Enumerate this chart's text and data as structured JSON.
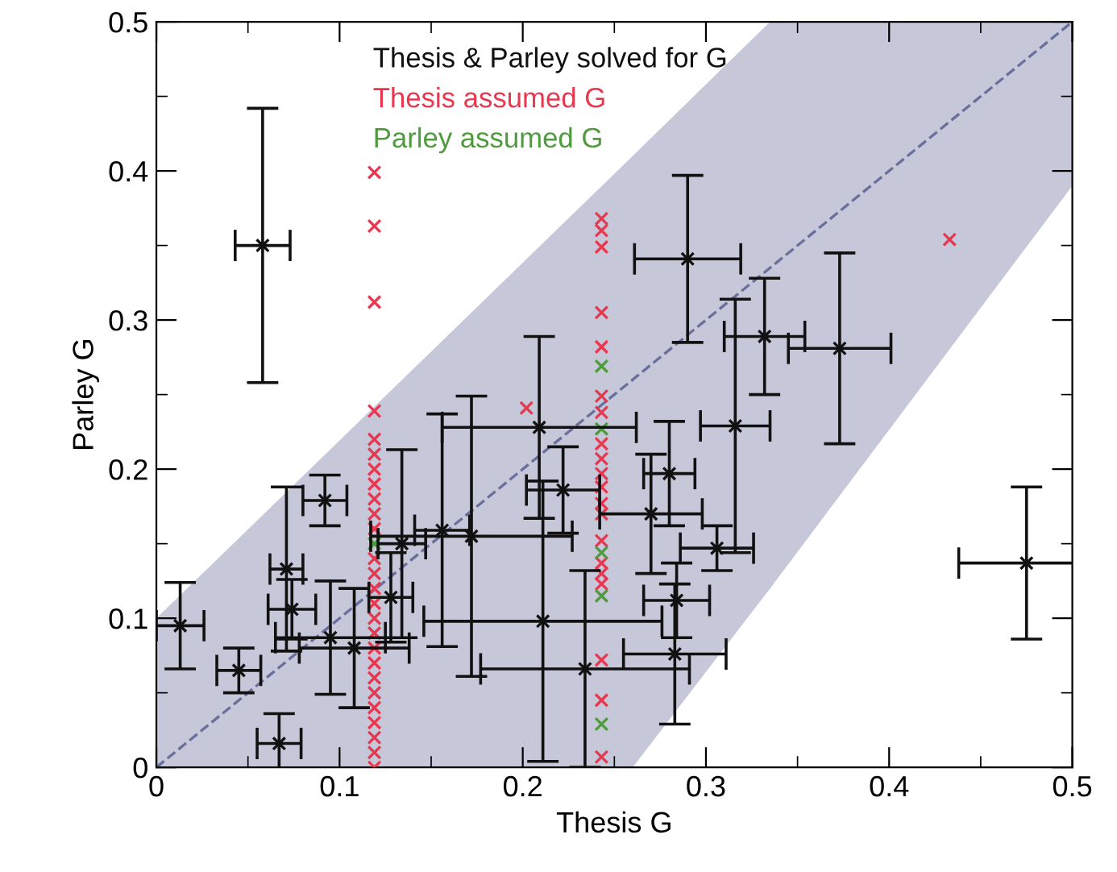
{
  "chart_data": {
    "type": "scatter",
    "xlabel": "Thesis G",
    "ylabel": "Parley G",
    "xlim": [
      0,
      0.5
    ],
    "ylim": [
      0,
      0.5
    ],
    "xticks": [
      0,
      0.1,
      0.2,
      0.3,
      0.4,
      0.5
    ],
    "yticks": [
      0,
      0.1,
      0.2,
      0.3,
      0.4,
      0.5
    ],
    "grid": false,
    "legend": "top",
    "marker": "cross",
    "series": [
      {
        "type": "line",
        "color": "#6a6f9c",
        "line_style": "dashed",
        "marker": "none",
        "x": [
          0,
          0.26,
          0.335,
          0.5
        ],
        "values": [
          0,
          0.26,
          0.335,
          0.5
        ],
        "lower": [
          0,
          0,
          0.12,
          0.39
        ],
        "upper": [
          0.1,
          0.41,
          0.5,
          0.5
        ]
      },
      {
        "name": "Thesis & Parley solved for G",
        "color": "#111111",
        "x": [
          0.058,
          0.013,
          0.045,
          0.067,
          0.092,
          0.071,
          0.074,
          0.095,
          0.108,
          0.128,
          0.134,
          0.156,
          0.172,
          0.209,
          0.222,
          0.211,
          0.234,
          0.29,
          0.332,
          0.373,
          0.316,
          0.28,
          0.27,
          0.306,
          0.284,
          0.283,
          0.475
        ],
        "values": [
          0.35,
          0.095,
          0.065,
          0.016,
          0.179,
          0.133,
          0.106,
          0.087,
          0.08,
          0.114,
          0.15,
          0.159,
          0.155,
          0.228,
          0.186,
          0.098,
          0.066,
          0.341,
          0.289,
          0.281,
          0.229,
          0.197,
          0.17,
          0.147,
          0.112,
          0.076,
          0.137
        ],
        "xerrors": [
          0.015,
          0.013,
          0.012,
          0.012,
          0.012,
          0.009,
          0.013,
          0.03,
          0.03,
          0.012,
          0.013,
          0.015,
          0.055,
          0.053,
          0.02,
          0.065,
          0.057,
          0.029,
          0.022,
          0.028,
          0.019,
          0.014,
          0.028,
          0.02,
          0.018,
          0.028,
          0.037
        ],
        "errors": [
          0.092,
          0.029,
          0.015,
          0.02,
          0.017,
          0.055,
          0.02,
          0.038,
          0.04,
          0.03,
          0.063,
          0.078,
          0.094,
          0.061,
          0.029,
          0.094,
          0.066,
          0.056,
          0.039,
          0.064,
          0.085,
          0.035,
          0.04,
          0.015,
          0.025,
          0.047,
          0.051
        ]
      },
      {
        "name": "Thesis assumed G",
        "color": "#e8384f",
        "x": [
          0.119,
          0.119,
          0.119,
          0.119,
          0.119,
          0.119,
          0.119,
          0.119,
          0.119,
          0.119,
          0.119,
          0.119,
          0.119,
          0.119,
          0.119,
          0.119,
          0.119,
          0.119,
          0.119,
          0.119,
          0.119,
          0.119,
          0.119,
          0.119,
          0.119,
          0.119,
          0.243,
          0.243,
          0.243,
          0.243,
          0.243,
          0.243,
          0.243,
          0.243,
          0.243,
          0.243,
          0.243,
          0.243,
          0.243,
          0.243,
          0.243,
          0.243,
          0.243,
          0.243,
          0.243,
          0.243,
          0.202,
          0.433
        ],
        "values": [
          0.399,
          0.363,
          0.312,
          0.239,
          0.22,
          0.21,
          0.2,
          0.19,
          0.18,
          0.17,
          0.16,
          0.14,
          0.13,
          0.12,
          0.11,
          0.1,
          0.09,
          0.08,
          0.07,
          0.06,
          0.05,
          0.04,
          0.03,
          0.02,
          0.01,
          0.0,
          0.368,
          0.349,
          0.305,
          0.282,
          0.249,
          0.238,
          0.217,
          0.207,
          0.197,
          0.188,
          0.177,
          0.17,
          0.152,
          0.137,
          0.13,
          0.123,
          0.072,
          0.045,
          0.007,
          0.36,
          0.241,
          0.354
        ]
      },
      {
        "name": "Parley assumed G",
        "color": "#4e9a3c",
        "x": [
          0.119,
          0.243,
          0.243,
          0.243,
          0.243,
          0.243
        ],
        "values": [
          0.15,
          0.269,
          0.227,
          0.144,
          0.115,
          0.029
        ]
      }
    ]
  }
}
